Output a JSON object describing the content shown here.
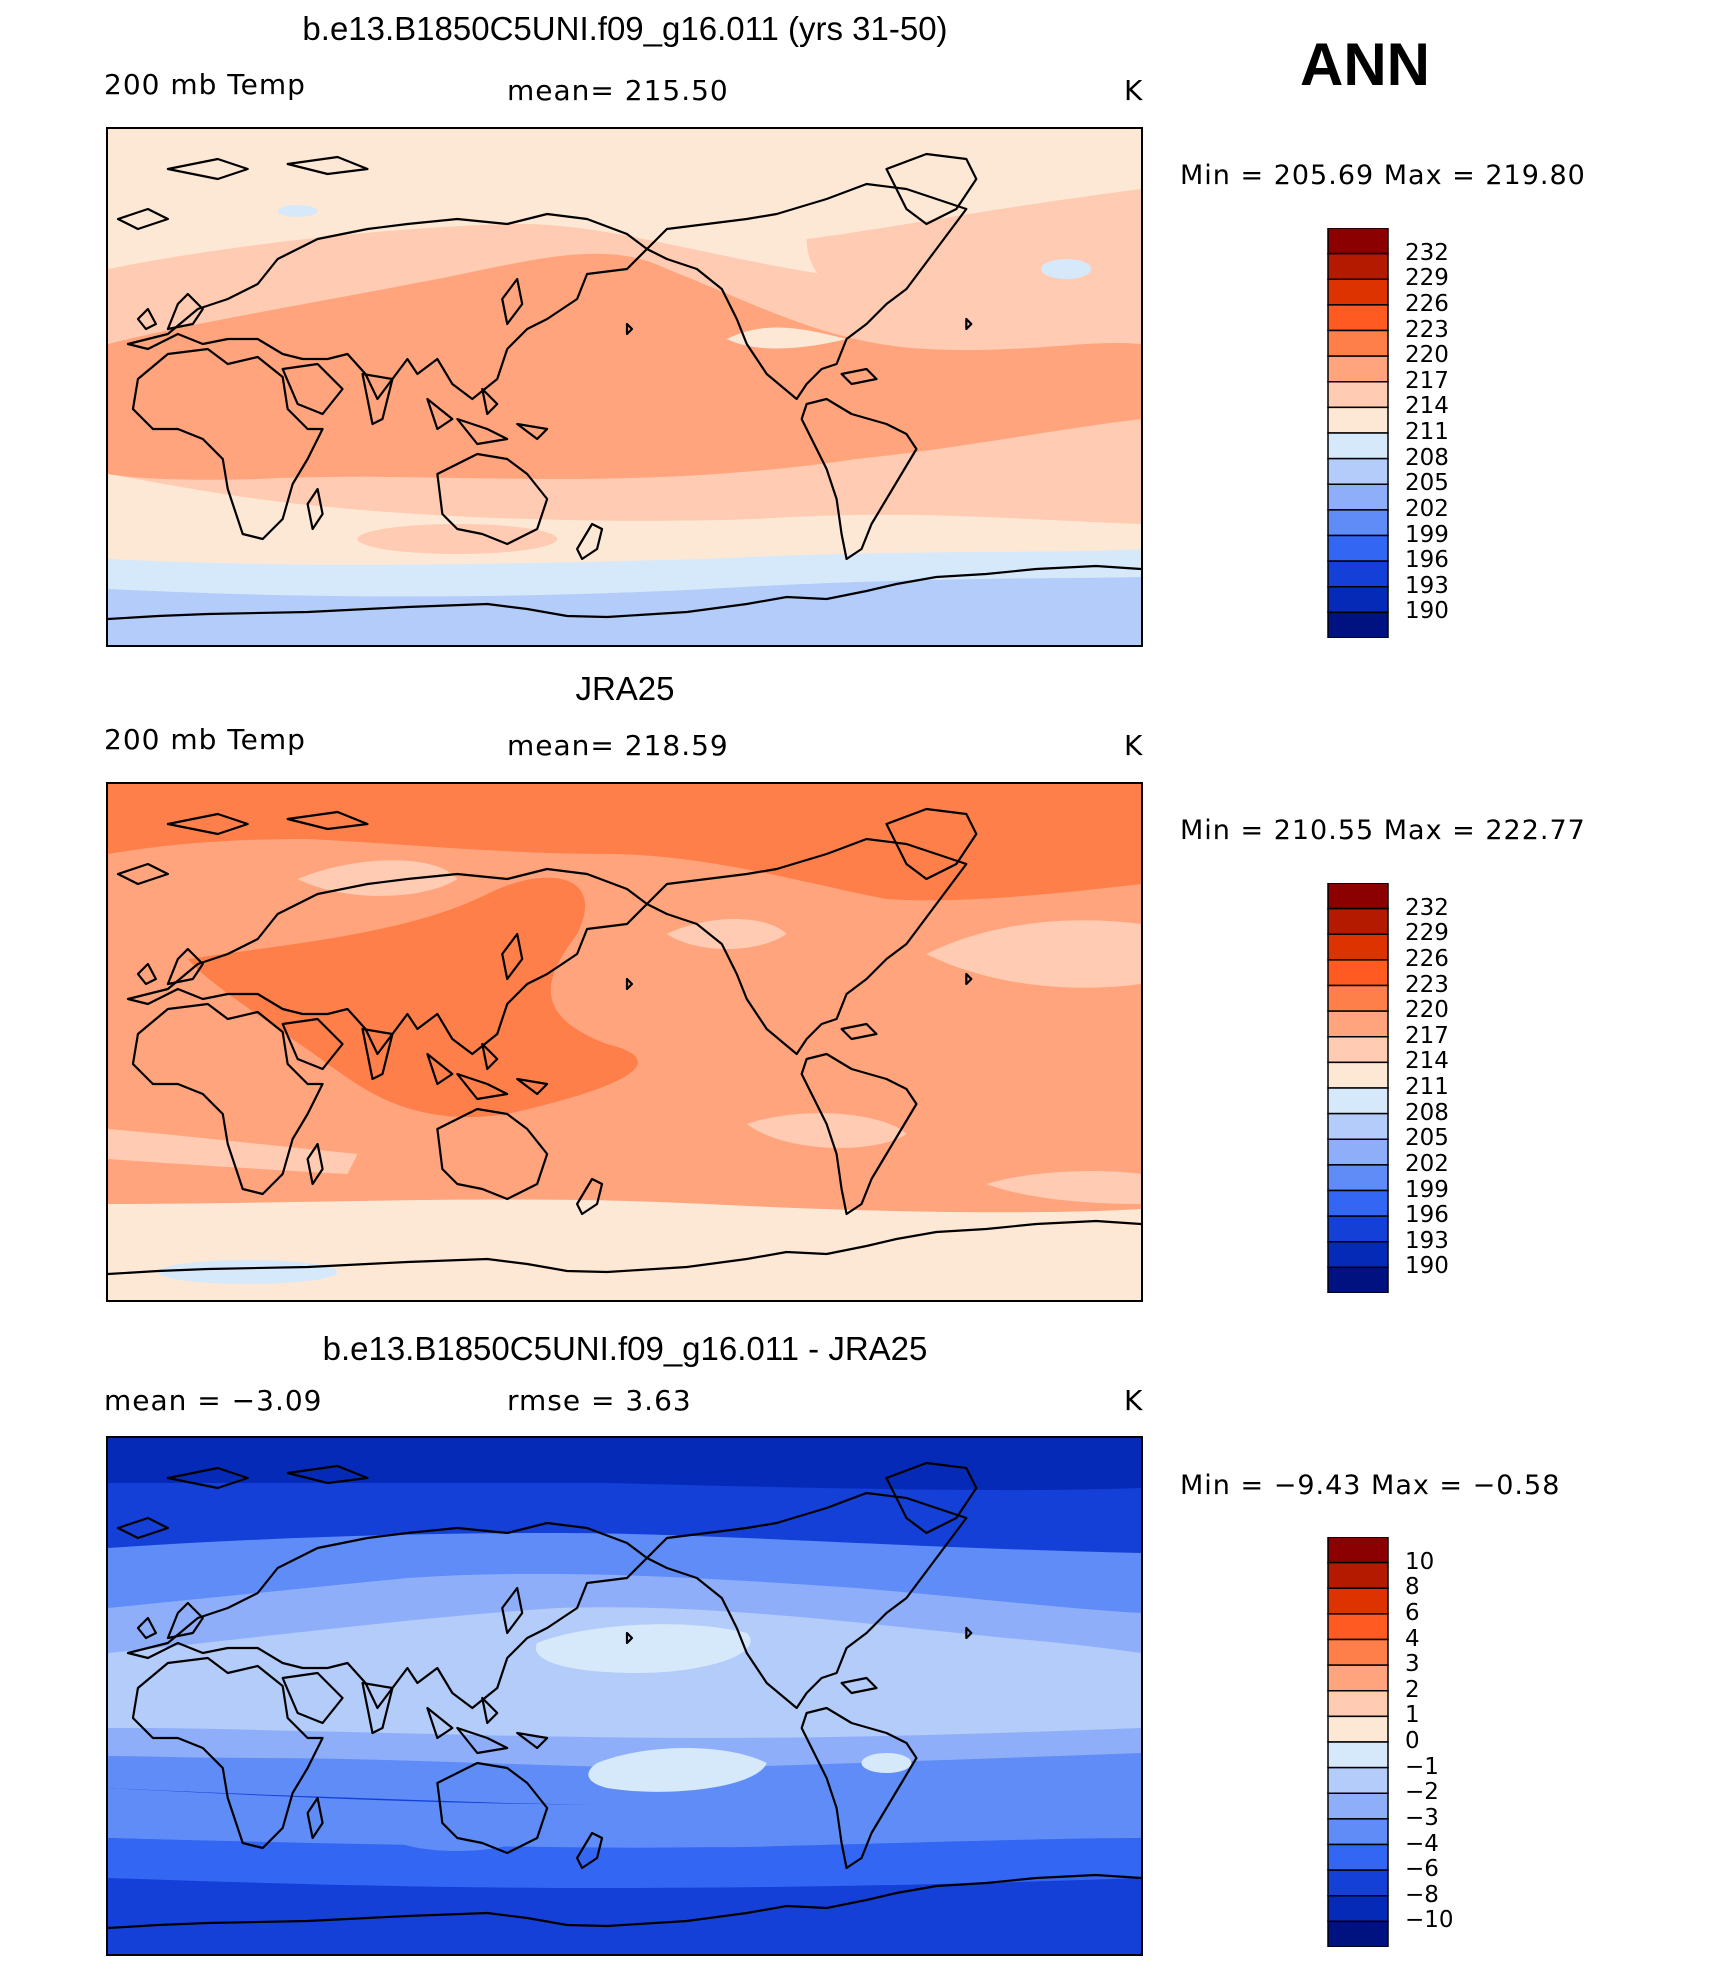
{
  "header": {
    "season": "ANN"
  },
  "panels": [
    {
      "title": "b.e13.B1850C5UNI.f09_g16.011 (yrs 31-50)",
      "left_label": "200 mb Temp",
      "center_label": "mean=  215.50",
      "units": "K",
      "minmax": "Min  =  205.69  Max  =  219.80",
      "levels": [
        "232",
        "229",
        "226",
        "223",
        "220",
        "217",
        "214",
        "211",
        "208",
        "205",
        "202",
        "199",
        "196",
        "193",
        "190"
      ],
      "colors": [
        "#8b0000",
        "#b31a00",
        "#dd3300",
        "#ff5a22",
        "#ff7f4a",
        "#ffa47d",
        "#ffcbb2",
        "#fde8d5",
        "#d6e9fb",
        "#b4ccf9",
        "#8eaefa",
        "#5f8cf7",
        "#3366f2",
        "#1440d8",
        "#062ab8",
        "#001280"
      ],
      "fields": {
        "bg": "#fde8d5",
        "mid": "#ffcbb2",
        "core": "#ffa47d",
        "south": "#b4ccf9",
        "south_edge": "#d6e9fb",
        "blob": "#d6e9fb"
      }
    },
    {
      "title": "JRA25",
      "left_label": "200 mb Temp",
      "center_label": "mean=  218.59",
      "units": "K",
      "minmax": "Min  =  210.55  Max  =  222.77",
      "levels": [
        "232",
        "229",
        "226",
        "223",
        "220",
        "217",
        "214",
        "211",
        "208",
        "205",
        "202",
        "199",
        "196",
        "193",
        "190"
      ],
      "colors": [
        "#8b0000",
        "#b31a00",
        "#dd3300",
        "#ff5a22",
        "#ff7f4a",
        "#ffa47d",
        "#ffcbb2",
        "#fde8d5",
        "#d6e9fb",
        "#b4ccf9",
        "#8eaefa",
        "#5f8cf7",
        "#3366f2",
        "#1440d8",
        "#062ab8",
        "#001280"
      ],
      "fields": {
        "bg": "#ffa47d",
        "north": "#ff7f4a",
        "warmpool": "#ff7f4a",
        "light": "#ffcbb2",
        "south": "#fde8d5",
        "blob": "#d6e9fb"
      }
    },
    {
      "title": "b.e13.B1850C5UNI.f09_g16.011 - JRA25",
      "left_label": "mean  =     −3.09",
      "center_label": "rmse  =      3.63",
      "units": "K",
      "minmax": "Min  =    −9.43  Max  =    −0.58",
      "levels": [
        "10",
        "8",
        "6",
        "4",
        "3",
        "2",
        "1",
        "0",
        "−1",
        "−2",
        "−3",
        "−4",
        "−6",
        "−8",
        "−10"
      ],
      "colors": [
        "#8b0000",
        "#b31a00",
        "#dd3300",
        "#ff5a22",
        "#ff7f4a",
        "#ffa47d",
        "#ffcbb2",
        "#fde8d5",
        "#d6e9fb",
        "#b4ccf9",
        "#8eaefa",
        "#5f8cf7",
        "#3366f2",
        "#1440d8",
        "#062ab8",
        "#001280"
      ],
      "fields": {
        "polar_n": "#062ab8",
        "north": "#1440d8",
        "mid": "#5f8cf7",
        "trop": "#8eaefa",
        "eq": "#b4ccf9",
        "light": "#d6e9fb",
        "south_mid": "#5f8cf7",
        "south": "#3366f2",
        "antarctic": "#1440d8"
      }
    }
  ]
}
